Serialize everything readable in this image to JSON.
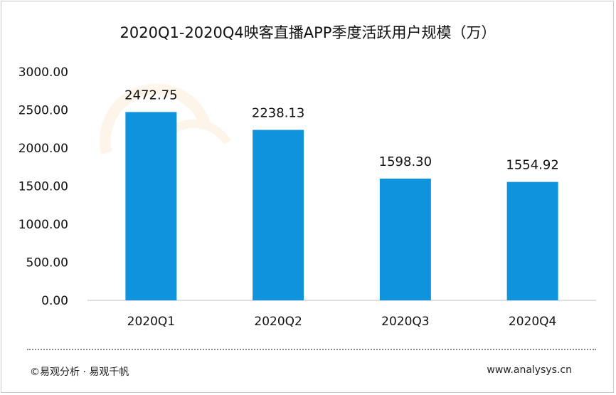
{
  "chart_data": {
    "type": "bar",
    "title": "2020Q1-2020Q4映客直播APP季度活跃用户规模（万）",
    "categories": [
      "2020Q1",
      "2020Q2",
      "2020Q3",
      "2020Q4"
    ],
    "values": [
      2472.75,
      2238.13,
      1598.3,
      1554.92
    ],
    "value_labels": [
      "2472.75",
      "2238.13",
      "1598.30",
      "1554.92"
    ],
    "y_ticks": [
      "0.00",
      "500.00",
      "1000.00",
      "1500.00",
      "2000.00",
      "2500.00",
      "3000.00"
    ],
    "ylim": [
      0,
      3000
    ],
    "bar_color": "#0e93dc",
    "grid": false,
    "legend": "none"
  },
  "footer": {
    "left": "©易观分析 · 易观千帆",
    "right": "www.analysys.cn"
  }
}
